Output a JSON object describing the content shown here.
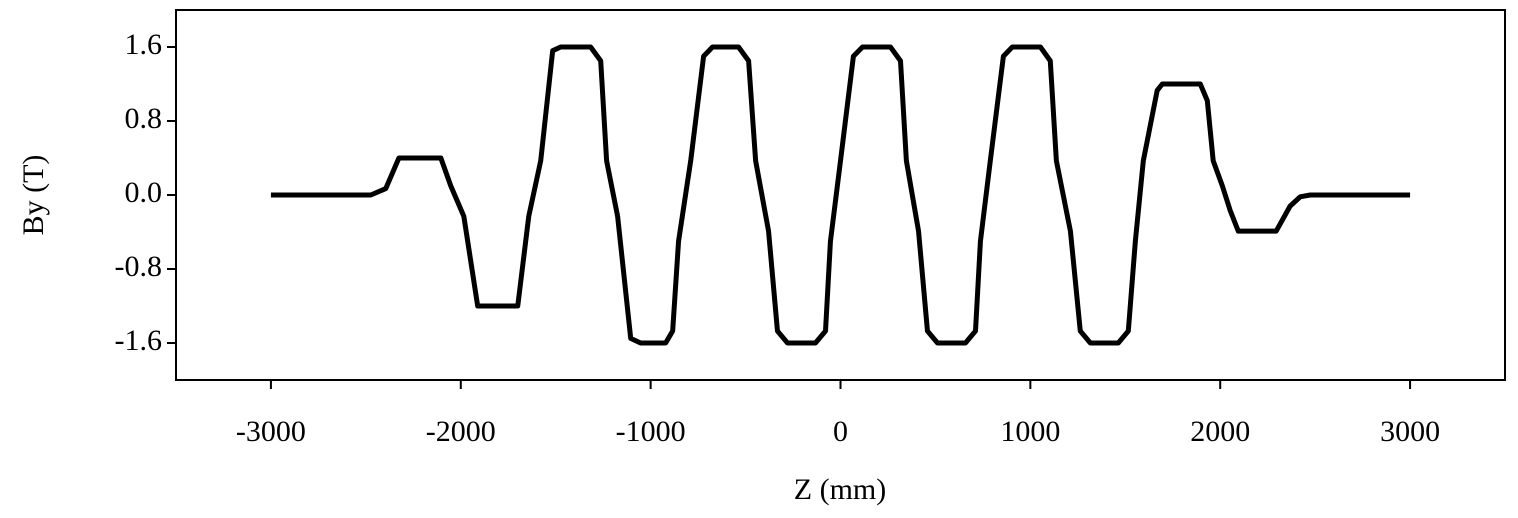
{
  "chart_data": {
    "type": "line",
    "xlabel": "Z (mm)",
    "ylabel": "By (T)",
    "xlim": [
      -3500,
      3500
    ],
    "ylim": [
      -2,
      2
    ],
    "xticks": [
      -3000,
      -2000,
      -1000,
      0,
      1000,
      2000,
      3000
    ],
    "yticks": [
      -1.6,
      -0.8,
      {
        "value": 0,
        "label": "0.0"
      },
      0.8,
      1.6
    ],
    "grid": false,
    "series": [
      {
        "name": "By",
        "color": "#000000",
        "x": [
          -3000,
          -2474,
          -2395,
          -2326,
          -2105,
          -2053,
          -1984,
          -1911,
          -1700,
          -1642,
          -1579,
          -1516,
          -1474,
          -1316,
          -1263,
          -1232,
          -1174,
          -1105,
          -1053,
          -921,
          -884,
          -853,
          -789,
          -721,
          -674,
          -537,
          -484,
          -447,
          -379,
          -332,
          -279,
          -132,
          -79,
          -53,
          0,
          68,
          116,
          263,
          316,
          347,
          411,
          458,
          511,
          658,
          711,
          737,
          789,
          858,
          905,
          1053,
          1105,
          1137,
          1211,
          1263,
          1316,
          1463,
          1516,
          1553,
          1595,
          1668,
          1695,
          1895,
          1932,
          1963,
          2011,
          2053,
          2095,
          2295,
          2368,
          2421,
          2474,
          3000
        ],
        "values": [
          0,
          0,
          0.07,
          0.4,
          0.4,
          0.1,
          -0.23,
          -1.2,
          -1.2,
          -0.23,
          0.37,
          1.56,
          1.6,
          1.6,
          1.45,
          0.37,
          -0.23,
          -1.55,
          -1.6,
          -1.6,
          -1.47,
          -0.5,
          0.37,
          1.5,
          1.6,
          1.6,
          1.45,
          0.37,
          -0.39,
          -1.47,
          -1.6,
          -1.6,
          -1.47,
          -0.5,
          0.37,
          1.5,
          1.6,
          1.6,
          1.45,
          0.37,
          -0.39,
          -1.47,
          -1.6,
          -1.6,
          -1.47,
          -0.5,
          0.37,
          1.5,
          1.6,
          1.6,
          1.45,
          0.37,
          -0.39,
          -1.47,
          -1.6,
          -1.6,
          -1.47,
          -0.5,
          0.37,
          1.13,
          1.2,
          1.2,
          1.02,
          0.37,
          0.1,
          -0.17,
          -0.39,
          -0.39,
          -0.12,
          -0.02,
          0,
          0
        ]
      }
    ]
  }
}
